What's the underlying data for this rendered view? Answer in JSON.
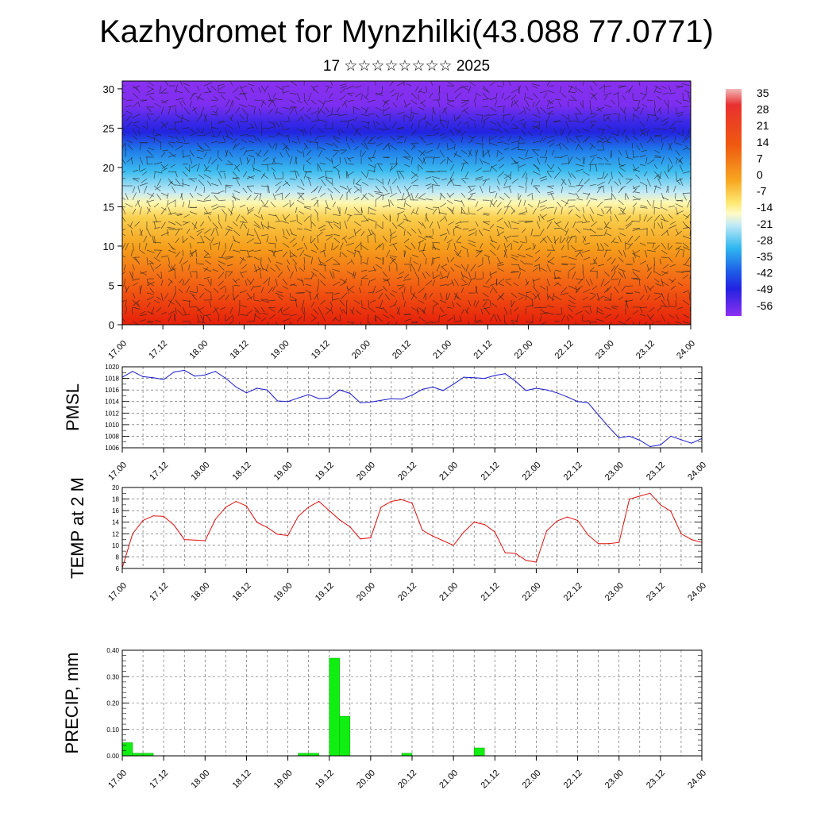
{
  "header": {
    "title": "Kazhydromet for Mynzhilki(43.088 77.0771)",
    "subtitle": "17 ☆☆☆☆☆☆☆☆ 2025"
  },
  "chart_data": [
    {
      "type": "heatmap",
      "ylim": [
        0,
        31
      ],
      "yticks": [
        "0",
        "5",
        "10",
        "15",
        "20",
        "25",
        "30"
      ],
      "xticks": [
        "17.00",
        "17.12",
        "18.00",
        "18.12",
        "19.00",
        "19.12",
        "20.00",
        "20.12",
        "21.00",
        "21.12",
        "22.00",
        "22.12",
        "23.00",
        "23.12",
        "24.00"
      ],
      "colorbar_labels": [
        "35",
        "28",
        "21",
        "14",
        "7",
        "0",
        "-7",
        "-14",
        "-21",
        "-28",
        "-35",
        "-42",
        "-49",
        "-56"
      ],
      "colors": {
        "hot": "#e8220c",
        "orange": "#f59a1a",
        "yellow": "#fff6a8",
        "cyan": "#23b8f0",
        "blue": "#2a2ee6",
        "purple": "#8b2df0"
      }
    },
    {
      "type": "line",
      "ylabel": "PMSL",
      "ylim": [
        1006,
        1020
      ],
      "yticks": [
        "1006",
        "1008",
        "1010",
        "1012",
        "1014",
        "1016",
        "1018",
        "1020"
      ],
      "xticks": [
        "17.00",
        "17.12",
        "18.00",
        "18.12",
        "19.00",
        "19.12",
        "20.00",
        "20.12",
        "21.00",
        "21.12",
        "22.00",
        "22.12",
        "23.00",
        "23.12",
        "24.00"
      ],
      "x_hours": [
        0,
        3,
        6,
        9,
        12,
        15,
        18,
        21,
        24,
        27,
        30,
        33,
        36,
        39,
        42,
        45,
        48,
        51,
        54,
        57,
        60,
        63,
        66,
        69,
        72,
        75,
        78,
        81,
        84,
        87,
        90,
        93,
        96,
        99,
        102,
        105,
        108,
        111,
        114,
        117,
        120,
        123,
        126,
        129,
        132,
        135,
        138,
        141,
        144,
        147,
        150,
        153,
        156,
        159,
        162,
        165,
        168
      ],
      "values": [
        1018.2,
        1019.2,
        1018.3,
        1018.1,
        1017.8,
        1019.1,
        1019.4,
        1018.4,
        1018.6,
        1019.2,
        1018.0,
        1016.5,
        1015.5,
        1016.3,
        1016.0,
        1014.1,
        1014.0,
        1014.6,
        1015.2,
        1014.5,
        1014.6,
        1016.0,
        1015.4,
        1013.8,
        1013.9,
        1014.2,
        1014.5,
        1014.4,
        1015.1,
        1016.1,
        1016.5,
        1015.9,
        1017.0,
        1018.2,
        1018.1,
        1018.0,
        1018.5,
        1018.8,
        1017.5,
        1015.9,
        1016.3,
        1016.0,
        1015.5,
        1014.8,
        1014.0,
        1013.8,
        1011.7,
        1009.6,
        1007.7,
        1008.0,
        1007.3,
        1006.2,
        1006.5,
        1008.0,
        1007.4,
        1006.8,
        1007.6
      ],
      "colors": {
        "line": "#1a1acc"
      }
    },
    {
      "type": "line",
      "ylabel": "TEMP at 2 M",
      "ylim": [
        6,
        20
      ],
      "yticks": [
        "6",
        "8",
        "10",
        "12",
        "14",
        "16",
        "18",
        "20"
      ],
      "xticks": [
        "17.00",
        "17.12",
        "18.00",
        "18.12",
        "19.00",
        "19.12",
        "20.00",
        "20.12",
        "21.00",
        "21.12",
        "22.00",
        "22.12",
        "23.00",
        "23.12",
        "24.00"
      ],
      "x_hours": [
        0,
        3,
        6,
        9,
        12,
        15,
        18,
        21,
        24,
        27,
        30,
        33,
        36,
        39,
        42,
        45,
        48,
        51,
        54,
        57,
        60,
        63,
        66,
        69,
        72,
        75,
        78,
        81,
        84,
        87,
        90,
        93,
        96,
        99,
        102,
        105,
        108,
        111,
        114,
        117,
        120,
        123,
        126,
        129,
        132,
        135,
        138,
        141,
        144,
        147,
        150,
        153,
        156,
        159,
        162,
        165,
        168
      ],
      "values": [
        6.1,
        12.0,
        14.3,
        15.1,
        15.0,
        13.5,
        11.0,
        10.9,
        10.8,
        14.5,
        16.6,
        17.6,
        16.8,
        14.0,
        13.1,
        11.9,
        11.7,
        15.0,
        16.6,
        17.6,
        16.0,
        14.4,
        13.2,
        11.1,
        11.3,
        16.6,
        17.6,
        17.9,
        17.3,
        12.6,
        11.6,
        10.8,
        10.0,
        12.3,
        14.0,
        13.6,
        12.3,
        8.7,
        8.6,
        7.4,
        7.1,
        12.5,
        14.2,
        14.9,
        14.3,
        11.8,
        10.3,
        10.3,
        10.5,
        18.0,
        18.5,
        19.0,
        17.0,
        15.9,
        12.0,
        11.0,
        10.5
      ],
      "colors": {
        "line": "#dd1111"
      }
    },
    {
      "type": "bar",
      "ylabel": "PRECIP, mm",
      "ylim": [
        0,
        0.4
      ],
      "yticks": [
        "0.00",
        "0.10",
        "0.20",
        "0.30",
        "0.40"
      ],
      "xticks": [
        "17.00",
        "17.12",
        "18.00",
        "18.12",
        "19.00",
        "19.12",
        "20.00",
        "20.12",
        "21.00",
        "21.12",
        "22.00",
        "22.12",
        "23.00",
        "23.12",
        "24.00"
      ],
      "x_hours": [
        0,
        3,
        6,
        51,
        54,
        60,
        63,
        81,
        102
      ],
      "values": [
        0.05,
        0.01,
        0.01,
        0.01,
        0.01,
        0.37,
        0.15,
        0.01,
        0.03
      ],
      "colors": {
        "bar": "#11ee11"
      }
    }
  ]
}
